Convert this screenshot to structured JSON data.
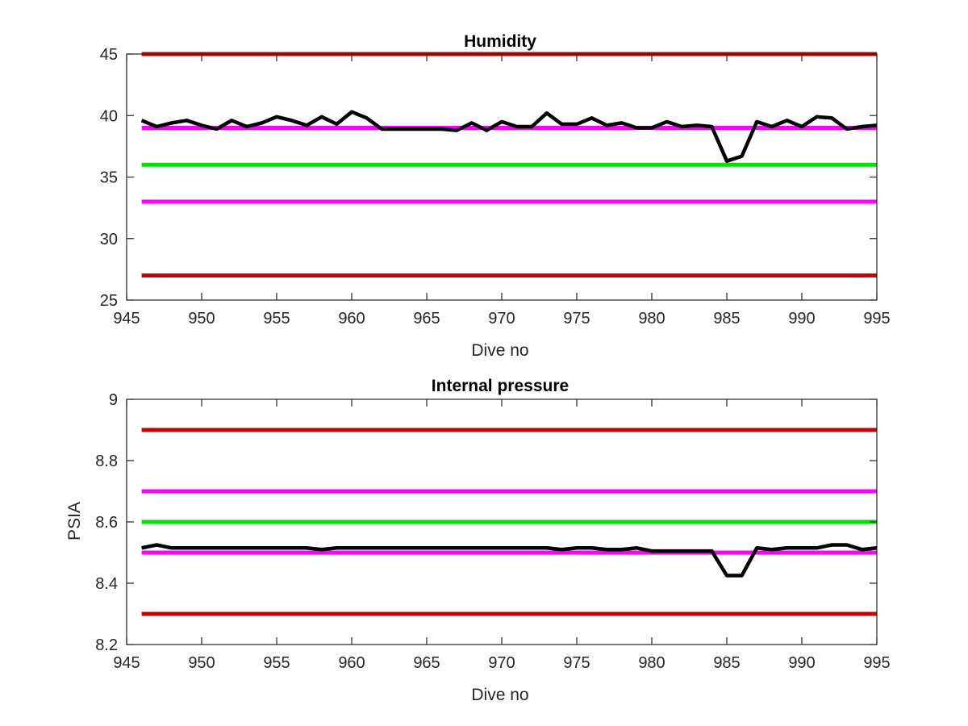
{
  "chart_data": [
    {
      "type": "line",
      "title": "Humidity",
      "xlabel": "Dive no",
      "ylabel": "",
      "xlim": [
        945,
        995
      ],
      "ylim": [
        25,
        45
      ],
      "xticks": [
        945,
        950,
        955,
        960,
        965,
        970,
        975,
        980,
        985,
        990,
        995
      ],
      "yticks": [
        25,
        30,
        35,
        40,
        45
      ],
      "grid": false,
      "colors": {
        "limit_red": "#cc0000",
        "limit_magenta": "#ff00ff",
        "nominal_green": "#00e000",
        "series": "#000000"
      },
      "series": [
        {
          "x": [
            946,
            947,
            948,
            949,
            950,
            951,
            952,
            953,
            954,
            955,
            956,
            957,
            958,
            959,
            960,
            961,
            962,
            963,
            964,
            965,
            966,
            967,
            968,
            969,
            970,
            971,
            972,
            973,
            974,
            975,
            976,
            977,
            978,
            979,
            980,
            981,
            982,
            983,
            984,
            985,
            986,
            987,
            988,
            989,
            990,
            991,
            992,
            993,
            994,
            995
          ],
          "values": [
            39.6,
            39.1,
            39.4,
            39.6,
            39.2,
            38.9,
            39.6,
            39.1,
            39.4,
            39.9,
            39.6,
            39.2,
            39.9,
            39.3,
            40.3,
            39.8,
            38.9,
            38.9,
            38.9,
            38.9,
            38.9,
            38.8,
            39.4,
            38.8,
            39.5,
            39.1,
            39.1,
            40.2,
            39.3,
            39.3,
            39.8,
            39.2,
            39.4,
            39.0,
            39.0,
            39.5,
            39.1,
            39.2,
            39.1,
            36.3,
            36.7,
            39.5,
            39.1,
            39.6,
            39.1,
            39.9,
            39.8,
            38.9,
            39.1,
            39.2
          ],
          "color": "#000000"
        }
      ],
      "reference_lines": [
        {
          "y": 45,
          "color": "#cc0000"
        },
        {
          "y": 39,
          "color": "#ff00ff"
        },
        {
          "y": 36,
          "color": "#00e000"
        },
        {
          "y": 33,
          "color": "#ff00ff"
        },
        {
          "y": 27,
          "color": "#cc0000"
        }
      ]
    },
    {
      "type": "line",
      "title": "Internal pressure",
      "xlabel": "Dive no",
      "ylabel": "PSIA",
      "xlim": [
        945,
        995
      ],
      "ylim": [
        8.2,
        9
      ],
      "xticks": [
        945,
        950,
        955,
        960,
        965,
        970,
        975,
        980,
        985,
        990,
        995
      ],
      "yticks": [
        "8.2",
        "8.4",
        "8.6",
        "8.8",
        "9"
      ],
      "grid": false,
      "colors": {
        "limit_red": "#cc0000",
        "limit_magenta": "#ff00ff",
        "nominal_green": "#00e000",
        "series": "#000000"
      },
      "series": [
        {
          "x": [
            946,
            947,
            948,
            949,
            950,
            951,
            952,
            953,
            954,
            955,
            956,
            957,
            958,
            959,
            960,
            961,
            962,
            963,
            964,
            965,
            966,
            967,
            968,
            969,
            970,
            971,
            972,
            973,
            974,
            975,
            976,
            977,
            978,
            979,
            980,
            981,
            982,
            983,
            984,
            985,
            986,
            987,
            988,
            989,
            990,
            991,
            992,
            993,
            994,
            995
          ],
          "values": [
            8.515,
            8.525,
            8.515,
            8.515,
            8.515,
            8.515,
            8.515,
            8.515,
            8.515,
            8.515,
            8.515,
            8.515,
            8.51,
            8.515,
            8.515,
            8.515,
            8.515,
            8.515,
            8.515,
            8.515,
            8.515,
            8.515,
            8.515,
            8.515,
            8.515,
            8.515,
            8.515,
            8.515,
            8.51,
            8.515,
            8.515,
            8.51,
            8.51,
            8.515,
            8.505,
            8.505,
            8.505,
            8.505,
            8.505,
            8.425,
            8.425,
            8.515,
            8.51,
            8.515,
            8.515,
            8.515,
            8.525,
            8.525,
            8.51,
            8.515
          ],
          "color": "#000000"
        }
      ],
      "reference_lines": [
        {
          "y": 8.9,
          "color": "#cc0000"
        },
        {
          "y": 8.7,
          "color": "#ff00ff"
        },
        {
          "y": 8.6,
          "color": "#00e000"
        },
        {
          "y": 8.5,
          "color": "#ff00ff"
        },
        {
          "y": 8.3,
          "color": "#cc0000"
        }
      ]
    }
  ]
}
